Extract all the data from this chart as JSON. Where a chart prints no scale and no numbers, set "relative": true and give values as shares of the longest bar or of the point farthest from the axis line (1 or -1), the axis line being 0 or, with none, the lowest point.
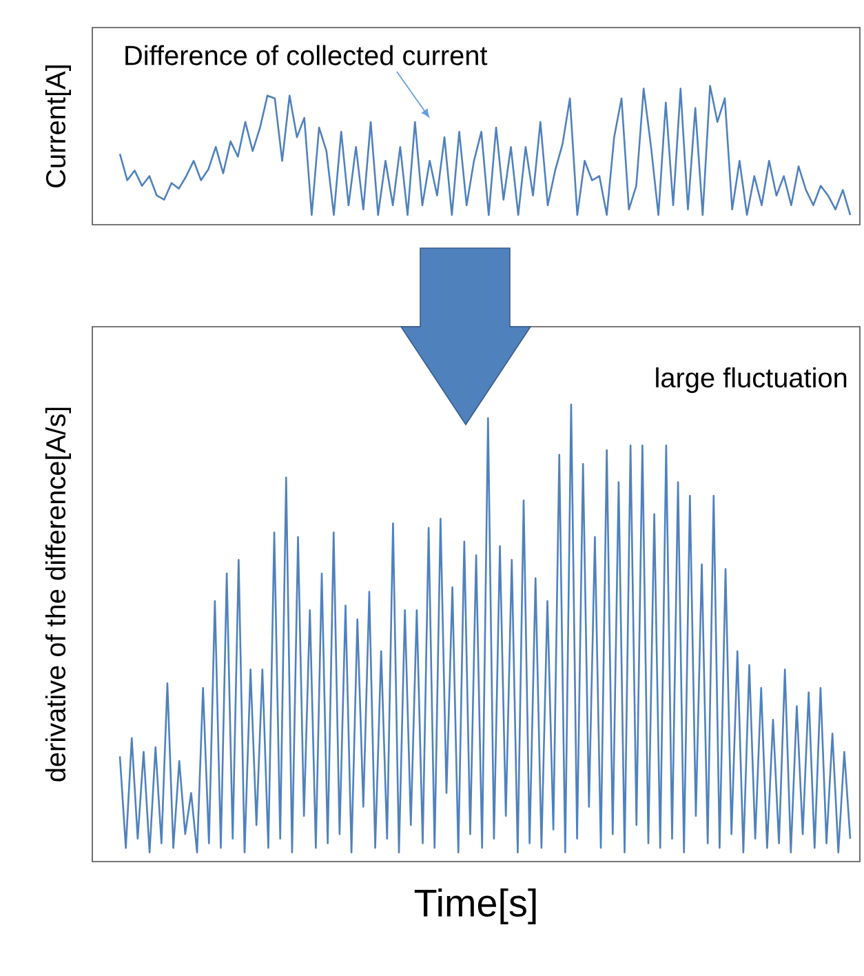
{
  "chart_data": [
    {
      "type": "line",
      "relative": true,
      "color": "#4f81bd",
      "ylabel": "Current[A]",
      "annotations": [
        "Difference of collected current"
      ],
      "categories": [
        null,
        null,
        null,
        null,
        null,
        null,
        null,
        null,
        null,
        null,
        null,
        null,
        null,
        null,
        null,
        null,
        null,
        null,
        null,
        null,
        null,
        null,
        null,
        null,
        null,
        null,
        null,
        null,
        null,
        null,
        null,
        null,
        null,
        null,
        null,
        null,
        null,
        null,
        null,
        null,
        null,
        null,
        null,
        null,
        null,
        null,
        null,
        null,
        null,
        null,
        null,
        null,
        null,
        null,
        null,
        null,
        null,
        null,
        null,
        null,
        null,
        null,
        null,
        null,
        null,
        null,
        null,
        null,
        null,
        null,
        null,
        null,
        null,
        null,
        null,
        null,
        null,
        null,
        null,
        null,
        null,
        null,
        null,
        null,
        null,
        null,
        null,
        null,
        null,
        null,
        null,
        null,
        null,
        null,
        null,
        null,
        null,
        null,
        null,
        null
      ],
      "values": [
        0.51,
        0.32,
        0.39,
        0.28,
        0.35,
        0.21,
        0.18,
        0.3,
        0.26,
        0.35,
        0.46,
        0.32,
        0.4,
        0.56,
        0.37,
        0.6,
        0.49,
        0.74,
        0.53,
        0.7,
        0.93,
        0.91,
        0.46,
        0.93,
        0.63,
        0.77,
        0.07,
        0.7,
        0.53,
        0.07,
        0.67,
        0.14,
        0.56,
        0.11,
        0.74,
        0.07,
        0.46,
        0.14,
        0.56,
        0.07,
        0.74,
        0.14,
        0.46,
        0.21,
        0.63,
        0.07,
        0.67,
        0.14,
        0.46,
        0.67,
        0.07,
        0.7,
        0.18,
        0.56,
        0.07,
        0.56,
        0.21,
        0.74,
        0.14,
        0.39,
        0.58,
        0.91,
        0.07,
        0.46,
        0.32,
        0.35,
        0.07,
        0.63,
        0.91,
        0.11,
        0.28,
        0.98,
        0.56,
        0.07,
        0.88,
        0.14,
        0.98,
        0.11,
        0.84,
        0.07,
        1.0,
        0.74,
        0.91,
        0.11,
        0.46,
        0.07,
        0.35,
        0.14,
        0.46,
        0.21,
        0.35,
        0.14,
        0.42,
        0.25,
        0.14,
        0.28,
        0.21,
        0.11,
        0.25,
        0.07
      ]
    },
    {
      "type": "line",
      "relative": true,
      "color": "#4f81bd",
      "ylabel": "derivative of the difference[A/s]",
      "xlabel": "Time[s]",
      "annotations": [
        "large fluctuation"
      ],
      "categories": [
        null,
        null,
        null,
        null,
        null,
        null,
        null,
        null,
        null,
        null,
        null,
        null,
        null,
        null,
        null,
        null,
        null,
        null,
        null,
        null,
        null,
        null,
        null,
        null,
        null,
        null,
        null,
        null,
        null,
        null,
        null,
        null,
        null,
        null,
        null,
        null,
        null,
        null,
        null,
        null,
        null,
        null,
        null,
        null,
        null,
        null,
        null,
        null,
        null,
        null,
        null,
        null,
        null,
        null,
        null,
        null,
        null,
        null,
        null,
        null,
        null,
        null,
        null,
        null,
        null,
        null,
        null,
        null,
        null,
        null,
        null,
        null,
        null,
        null,
        null,
        null,
        null,
        null,
        null,
        null,
        null,
        null,
        null,
        null,
        null,
        null,
        null,
        null,
        null,
        null,
        null,
        null,
        null,
        null,
        null,
        null,
        null,
        null,
        null,
        null,
        null,
        null,
        null,
        null,
        null,
        null,
        null,
        null,
        null,
        null,
        null,
        null,
        null,
        null,
        null,
        null,
        null,
        null,
        null,
        null,
        null,
        null,
        null,
        null
      ],
      "values": [
        0.23,
        0.03,
        0.27,
        0.05,
        0.24,
        0.02,
        0.25,
        0.04,
        0.39,
        0.03,
        0.22,
        0.06,
        0.15,
        0.02,
        0.38,
        0.04,
        0.57,
        0.03,
        0.63,
        0.05,
        0.66,
        0.02,
        0.42,
        0.08,
        0.42,
        0.03,
        0.72,
        0.05,
        0.84,
        0.02,
        0.71,
        0.1,
        0.55,
        0.03,
        0.63,
        0.04,
        0.72,
        0.06,
        0.56,
        0.02,
        0.53,
        0.12,
        0.59,
        0.03,
        0.46,
        0.05,
        0.74,
        0.02,
        0.55,
        0.08,
        0.55,
        0.04,
        0.73,
        0.03,
        0.75,
        0.15,
        0.6,
        0.02,
        0.7,
        0.06,
        0.67,
        0.03,
        0.97,
        0.05,
        0.69,
        0.1,
        0.66,
        0.02,
        0.79,
        0.04,
        0.62,
        0.03,
        0.57,
        0.07,
        0.89,
        0.02,
        1.0,
        0.05,
        0.87,
        0.12,
        0.71,
        0.03,
        0.9,
        0.06,
        0.83,
        0.02,
        0.91,
        0.08,
        0.91,
        0.04,
        0.76,
        0.03,
        0.91,
        0.05,
        0.83,
        0.02,
        0.8,
        0.1,
        0.65,
        0.04,
        0.8,
        0.03,
        0.64,
        0.06,
        0.46,
        0.02,
        0.43,
        0.05,
        0.38,
        0.03,
        0.31,
        0.04,
        0.42,
        0.02,
        0.34,
        0.06,
        0.37,
        0.03,
        0.38,
        0.04,
        0.28,
        0.02,
        0.24,
        0.05
      ]
    }
  ]
}
